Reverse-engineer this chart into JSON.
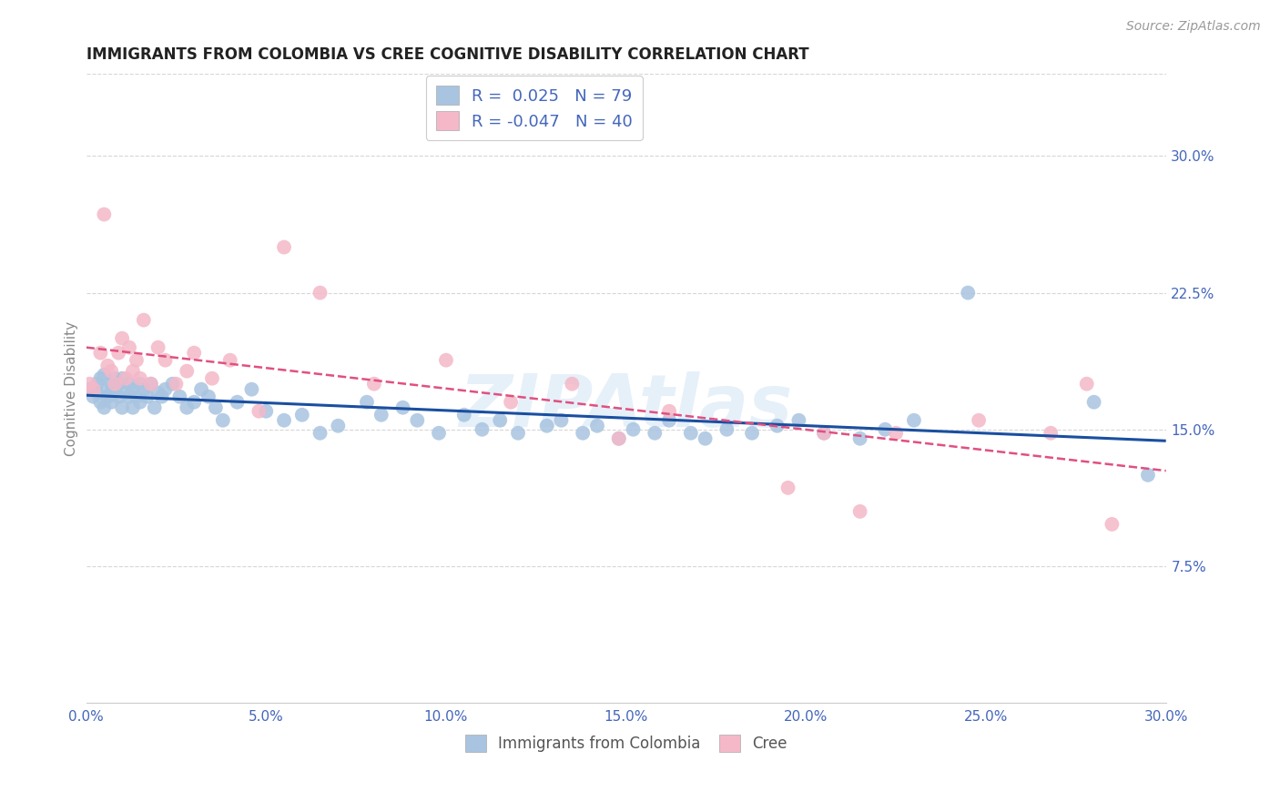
{
  "title": "IMMIGRANTS FROM COLOMBIA VS CREE COGNITIVE DISABILITY CORRELATION CHART",
  "source": "Source: ZipAtlas.com",
  "ylabel": "Cognitive Disability",
  "watermark": "ZIPAtlas",
  "xlim": [
    0.0,
    0.3
  ],
  "ylim": [
    0.0,
    0.345
  ],
  "xticks": [
    0.0,
    0.05,
    0.1,
    0.15,
    0.2,
    0.25,
    0.3
  ],
  "yticks_right": [
    0.075,
    0.15,
    0.225,
    0.3
  ],
  "ytick_labels_right": [
    "7.5%",
    "15.0%",
    "22.5%",
    "30.0%"
  ],
  "xtick_labels": [
    "0.0%",
    "5.0%",
    "10.0%",
    "15.0%",
    "20.0%",
    "25.0%",
    "30.0%"
  ],
  "R_colombia": 0.025,
  "N_colombia": 79,
  "R_cree": -0.047,
  "N_cree": 40,
  "color_colombia": "#a8c4e0",
  "color_cree": "#f4b8c8",
  "line_color_colombia": "#1a4fa0",
  "line_color_cree": "#e05080",
  "background_color": "#ffffff",
  "grid_color": "#cccccc",
  "title_color": "#333333",
  "axis_label_color": "#4466bb",
  "colombia_x": [
    0.001,
    0.002,
    0.003,
    0.003,
    0.004,
    0.004,
    0.005,
    0.005,
    0.006,
    0.006,
    0.007,
    0.007,
    0.007,
    0.008,
    0.008,
    0.009,
    0.009,
    0.01,
    0.01,
    0.011,
    0.012,
    0.012,
    0.013,
    0.013,
    0.014,
    0.015,
    0.015,
    0.016,
    0.017,
    0.018,
    0.019,
    0.02,
    0.021,
    0.022,
    0.024,
    0.026,
    0.028,
    0.03,
    0.032,
    0.034,
    0.036,
    0.038,
    0.042,
    0.046,
    0.05,
    0.055,
    0.06,
    0.065,
    0.07,
    0.078,
    0.082,
    0.088,
    0.092,
    0.098,
    0.105,
    0.11,
    0.115,
    0.12,
    0.128,
    0.132,
    0.138,
    0.142,
    0.148,
    0.152,
    0.158,
    0.162,
    0.168,
    0.172,
    0.178,
    0.185,
    0.192,
    0.198,
    0.205,
    0.215,
    0.222,
    0.23,
    0.245,
    0.28,
    0.295
  ],
  "colombia_y": [
    0.172,
    0.168,
    0.175,
    0.17,
    0.165,
    0.178,
    0.162,
    0.18,
    0.168,
    0.172,
    0.175,
    0.17,
    0.165,
    0.172,
    0.178,
    0.168,
    0.175,
    0.162,
    0.178,
    0.17,
    0.168,
    0.175,
    0.162,
    0.172,
    0.168,
    0.175,
    0.165,
    0.172,
    0.168,
    0.175,
    0.162,
    0.17,
    0.168,
    0.172,
    0.175,
    0.168,
    0.162,
    0.165,
    0.172,
    0.168,
    0.162,
    0.155,
    0.165,
    0.172,
    0.16,
    0.155,
    0.158,
    0.148,
    0.152,
    0.165,
    0.158,
    0.162,
    0.155,
    0.148,
    0.158,
    0.15,
    0.155,
    0.148,
    0.152,
    0.155,
    0.148,
    0.152,
    0.145,
    0.15,
    0.148,
    0.155,
    0.148,
    0.145,
    0.15,
    0.148,
    0.152,
    0.155,
    0.148,
    0.145,
    0.15,
    0.155,
    0.225,
    0.165,
    0.125
  ],
  "cree_x": [
    0.001,
    0.002,
    0.004,
    0.005,
    0.006,
    0.007,
    0.008,
    0.009,
    0.01,
    0.011,
    0.012,
    0.013,
    0.014,
    0.015,
    0.016,
    0.018,
    0.02,
    0.022,
    0.025,
    0.028,
    0.03,
    0.035,
    0.04,
    0.048,
    0.055,
    0.065,
    0.08,
    0.1,
    0.118,
    0.135,
    0.148,
    0.162,
    0.195,
    0.205,
    0.215,
    0.225,
    0.248,
    0.268,
    0.278,
    0.285
  ],
  "cree_y": [
    0.175,
    0.172,
    0.192,
    0.268,
    0.185,
    0.182,
    0.175,
    0.192,
    0.2,
    0.178,
    0.195,
    0.182,
    0.188,
    0.178,
    0.21,
    0.175,
    0.195,
    0.188,
    0.175,
    0.182,
    0.192,
    0.178,
    0.188,
    0.16,
    0.25,
    0.225,
    0.175,
    0.188,
    0.165,
    0.175,
    0.145,
    0.16,
    0.118,
    0.148,
    0.105,
    0.148,
    0.155,
    0.148,
    0.175,
    0.098
  ]
}
